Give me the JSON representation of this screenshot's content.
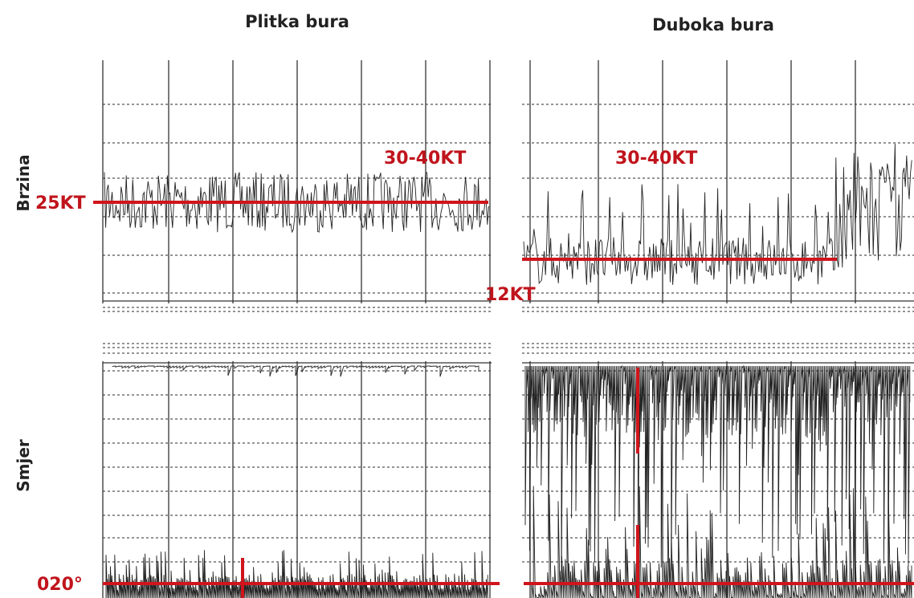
{
  "header": {
    "left_title": "Plitka bura",
    "right_title": "Duboka bura"
  },
  "side_labels": {
    "speed": "Brzina",
    "direction": "Smjer"
  },
  "annotations": [
    "25KT",
    "30-40KT",
    "30-40KT",
    "12KT",
    "020°"
  ]
}
